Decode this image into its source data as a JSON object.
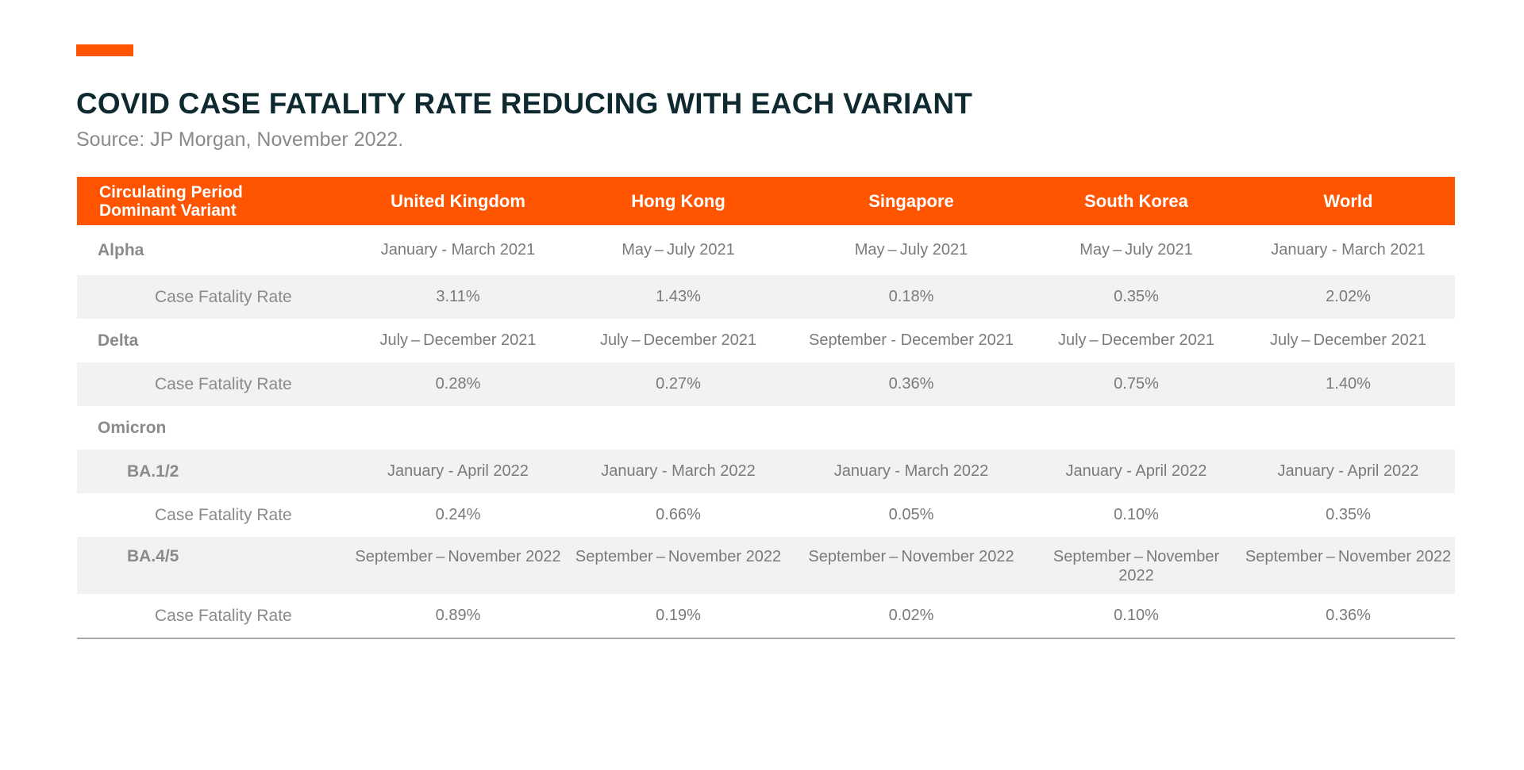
{
  "title": "COVID CASE FATALITY RATE REDUCING WITH EACH VARIANT",
  "subtitle": "Source: JP Morgan, November 2022.",
  "colors": {
    "accent": "#ff5500",
    "title": "#0e2a30",
    "row_shade": "#f2f2f2"
  },
  "table": {
    "header": {
      "corner_line1": "Circulating Period",
      "corner_line2": "Dominant Variant",
      "columns": [
        "United Kingdom",
        "Hong Kong",
        "Singapore",
        "South Korea",
        "World"
      ]
    },
    "rows": [
      {
        "label": "Alpha",
        "cells": [
          "January - March 2021",
          "May – July 2021",
          "May – July 2021",
          "May – July 2021",
          "January - March 2021"
        ]
      },
      {
        "label": "Case Fatality Rate",
        "cells": [
          "3.11%",
          "1.43%",
          "0.18%",
          "0.35%",
          "2.02%"
        ]
      },
      {
        "label": "Delta",
        "cells": [
          "July – December 2021",
          "July – December 2021",
          "September - December 2021",
          "July – December 2021",
          "July – December 2021"
        ]
      },
      {
        "label": "Case Fatality Rate",
        "cells": [
          "0.28%",
          "0.27%",
          "0.36%",
          "0.75%",
          "1.40%"
        ]
      },
      {
        "label": "Omicron",
        "cells": [
          "",
          "",
          "",
          "",
          ""
        ]
      },
      {
        "label": "BA.1/2",
        "cells": [
          "January - April 2022",
          "January - March 2022",
          "January - March 2022",
          "January - April 2022",
          "January - April 2022"
        ]
      },
      {
        "label": "Case Fatality Rate",
        "cells": [
          "0.24%",
          "0.66%",
          "0.05%",
          "0.10%",
          "0.35%"
        ]
      },
      {
        "label": "BA.4/5",
        "cells": [
          "September – November 2022",
          "September – November 2022",
          "September – November 2022",
          "September – November 2022",
          "September – November 2022"
        ]
      },
      {
        "label": "Case Fatality Rate",
        "cells": [
          "0.89%",
          "0.19%",
          "0.02%",
          "0.10%",
          "0.36%"
        ]
      }
    ]
  }
}
